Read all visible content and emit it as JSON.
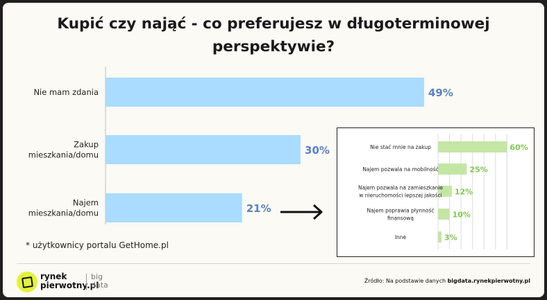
{
  "title_line1": "Kupić czy nająć - co preferujesz w długoterminowej",
  "title_line2": "perspektywie?",
  "note": "* użytkownicy portalu GetHome.pl",
  "chart_data": [
    {
      "type": "bar",
      "orientation": "horizontal",
      "categories": [
        [
          "Nie mam zdania"
        ],
        [
          "Zakup",
          "mieszkania/domu"
        ],
        [
          "Najem",
          "mieszkania/domu"
        ]
      ],
      "values": [
        49,
        30,
        21
      ],
      "value_labels": [
        "49%",
        "30%",
        "21%"
      ],
      "xlim": [
        0,
        49
      ],
      "color": "#a9dcff",
      "label_color": "#5b7fc9",
      "grid": false
    },
    {
      "type": "bar",
      "orientation": "horizontal",
      "categories": [
        [
          "Nie stać mnie na zakup"
        ],
        [
          "Najem pozwala na mobilność"
        ],
        [
          "Najem pozwala na zamieszkanie",
          "w nieruchomości lepszej jakości"
        ],
        [
          "Najem poprawia płynność",
          "finansową"
        ],
        [
          "Inne"
        ]
      ],
      "values": [
        60,
        25,
        12,
        10,
        3
      ],
      "value_labels": [
        "60%",
        "25%",
        "12%",
        "10%",
        "3%"
      ],
      "xlim": [
        0,
        70
      ],
      "color": "#c4e6a4",
      "label_color": "#7ec850",
      "grid": true
    }
  ],
  "logo": {
    "name_line1": "rynek",
    "name_line2": "pierwotny.pl",
    "sub_line1": "big",
    "sub_line2": "data"
  },
  "source": {
    "prefix": "Źródło: Na podstawie danych ",
    "bold": "bigdata.rynekpierwotny.pl"
  },
  "colors": {
    "accent_logo": "#e3f23a",
    "background": "#fbfaf4"
  }
}
